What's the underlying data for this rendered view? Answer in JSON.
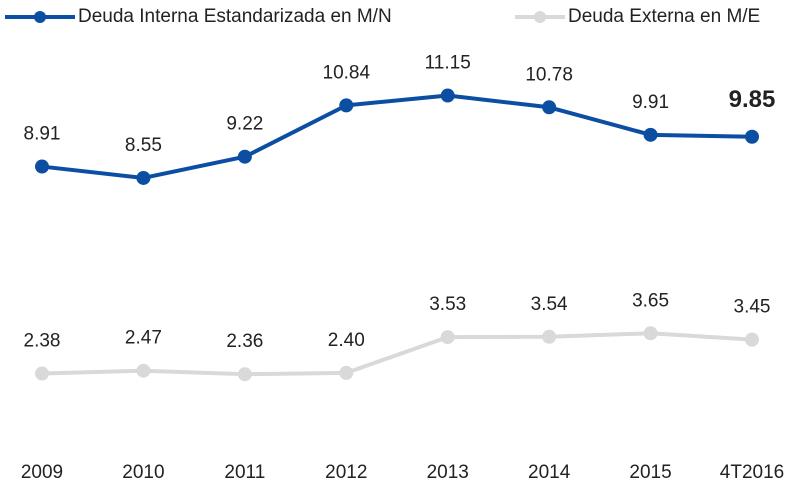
{
  "chart_data": {
    "type": "line",
    "categories": [
      "2009",
      "2010",
      "2011",
      "2012",
      "2013",
      "2014",
      "2015",
      "4T2016"
    ],
    "series": [
      {
        "name": "Deuda Interna Estandarizada en M/N",
        "color": "#0b4ea2",
        "values": [
          8.91,
          8.55,
          9.22,
          10.84,
          11.15,
          10.78,
          9.91,
          9.85
        ],
        "value_labels": [
          "8.91",
          "8.55",
          "9.22",
          "10.84",
          "11.15",
          "10.78",
          "9.91",
          "9.85"
        ]
      },
      {
        "name": "Deuda Externa en M/E",
        "color": "#d9d9d9",
        "values": [
          2.38,
          2.47,
          2.36,
          2.4,
          3.53,
          3.54,
          3.65,
          3.45
        ],
        "value_labels": [
          "2.38",
          "2.47",
          "2.36",
          "2.40",
          "3.53",
          "3.54",
          "3.65",
          "3.45"
        ]
      }
    ],
    "legend": "top"
  }
}
